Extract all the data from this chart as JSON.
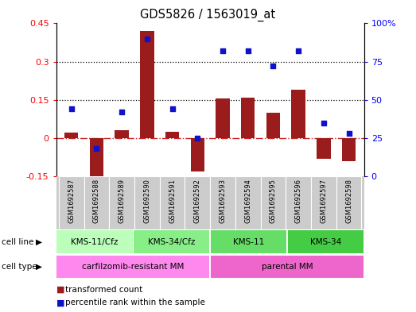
{
  "title": "GDS5826 / 1563019_at",
  "samples": [
    "GSM1692587",
    "GSM1692588",
    "GSM1692589",
    "GSM1692590",
    "GSM1692591",
    "GSM1692592",
    "GSM1692593",
    "GSM1692594",
    "GSM1692595",
    "GSM1692596",
    "GSM1692597",
    "GSM1692598"
  ],
  "transformed_count": [
    0.02,
    -0.175,
    0.03,
    0.42,
    0.025,
    -0.13,
    0.155,
    0.16,
    0.1,
    0.19,
    -0.08,
    -0.09
  ],
  "percentile_rank": [
    44,
    18,
    42,
    90,
    44,
    25,
    82,
    82,
    72,
    82,
    35,
    28
  ],
  "ylim_left": [
    -0.15,
    0.45
  ],
  "ylim_right": [
    0,
    100
  ],
  "yticks_left": [
    -0.15,
    0.0,
    0.15,
    0.3,
    0.45
  ],
  "yticks_right": [
    0,
    25,
    50,
    75,
    100
  ],
  "ytick_labels_left": [
    "-0.15",
    "0",
    "0.15",
    "0.3",
    "0.45"
  ],
  "ytick_labels_right": [
    "0",
    "25",
    "50",
    "75",
    "100%"
  ],
  "hlines": [
    0.15,
    0.3
  ],
  "bar_color": "#9B1C1C",
  "dot_color": "#1111CC",
  "zero_line_color": "#CC2222",
  "sample_bg": "#CCCCCC",
  "cell_line_groups": [
    {
      "label": "KMS-11/Cfz",
      "start": 0,
      "end": 3,
      "color": "#BBFFBB"
    },
    {
      "label": "KMS-34/Cfz",
      "start": 3,
      "end": 6,
      "color": "#88EE88"
    },
    {
      "label": "KMS-11",
      "start": 6,
      "end": 9,
      "color": "#66DD66"
    },
    {
      "label": "KMS-34",
      "start": 9,
      "end": 12,
      "color": "#44CC44"
    }
  ],
  "cell_type_groups": [
    {
      "label": "carfilzomib-resistant MM",
      "start": 0,
      "end": 6,
      "color": "#FF88EE"
    },
    {
      "label": "parental MM",
      "start": 6,
      "end": 12,
      "color": "#EE66CC"
    }
  ],
  "legend_bar_label": "transformed count",
  "legend_dot_label": "percentile rank within the sample",
  "cell_line_label": "cell line",
  "cell_type_label": "cell type"
}
